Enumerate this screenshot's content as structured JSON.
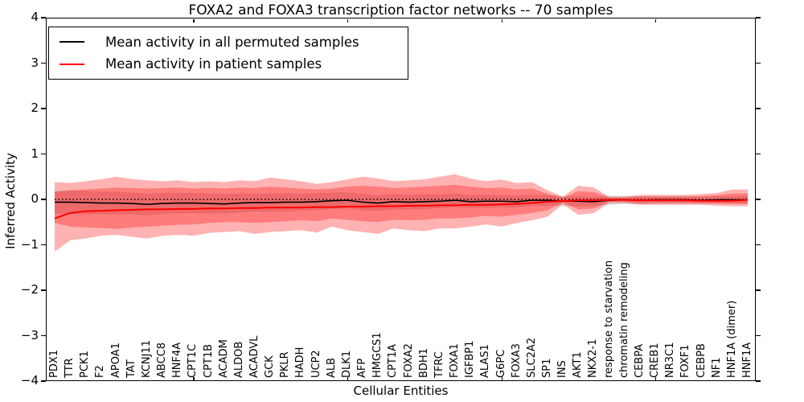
{
  "chart_data": {
    "type": "line",
    "title": "FOXA2 and FOXA3 transcription factor networks -- 70 samples",
    "xlabel": "Cellular Entities",
    "ylabel": "Inferred Activity",
    "ylim": [
      -4,
      4
    ],
    "yticks": [
      4,
      3,
      2,
      1,
      0,
      -1,
      -2,
      -3,
      -4
    ],
    "grid": false,
    "legend_position": "upper left",
    "zero_line": 0,
    "categories": [
      "PDX1",
      "TTR",
      "PCK1",
      "F2",
      "APOA1",
      "TAT",
      "KCNJ11",
      "ABCC8",
      "HNF4A",
      "CPT1C",
      "CPT1B",
      "ACADM",
      "ALDOB",
      "ACADVL",
      "GCK",
      "PKLR",
      "HADH",
      "UCP2",
      "ALB",
      "DLK1",
      "AFP",
      "HMGCS1",
      "CPT1A",
      "FOXA2",
      "BDH1",
      "TFRC",
      "FOXA1",
      "IGFBP1",
      "ALAS1",
      "G6PC",
      "FOXA3",
      "SLC2A2",
      "SP1",
      "INS",
      "AKT1",
      "NKX2-1",
      "response to starvation",
      "chromatin remodeling",
      "CEBPA",
      "CREB1",
      "NR3C1",
      "FOXF1",
      "CEBPB",
      "NF1",
      "HNF1A (dimer)",
      "HNF1A"
    ],
    "series": [
      {
        "name": "Mean activity in all permuted samples",
        "color": "#000000",
        "values": [
          -0.06,
          -0.06,
          -0.07,
          -0.08,
          -0.08,
          -0.09,
          -0.11,
          -0.09,
          -0.08,
          -0.08,
          -0.09,
          -0.1,
          -0.08,
          -0.07,
          -0.07,
          -0.06,
          -0.06,
          -0.05,
          -0.03,
          -0.02,
          -0.06,
          -0.08,
          -0.05,
          -0.06,
          -0.05,
          -0.04,
          -0.02,
          -0.05,
          -0.04,
          -0.04,
          -0.05,
          -0.02,
          -0.02,
          -0.04,
          -0.04,
          -0.05,
          -0.02,
          -0.01,
          -0.02,
          -0.01,
          -0.01,
          -0.01,
          -0.02,
          -0.01,
          -0.01,
          -0.01
        ],
        "band_halfwidth": [
          0.25,
          0.26,
          0.26,
          0.25,
          0.25,
          0.24,
          0.24,
          0.23,
          0.23,
          0.22,
          0.22,
          0.21,
          0.21,
          0.2,
          0.2,
          0.2,
          0.19,
          0.19,
          0.18,
          0.18,
          0.18,
          0.17,
          0.17,
          0.16,
          0.16,
          0.15,
          0.15,
          0.14,
          0.14,
          0.13,
          0.13,
          0.12,
          0.12,
          0.11,
          0.11,
          0.1,
          0.1,
          0.09,
          0.09,
          0.08,
          0.08,
          0.08,
          0.08,
          0.08,
          0.08,
          0.08
        ],
        "band_color": "#999999",
        "band_opacity": 0.35
      },
      {
        "name": "Mean activity in patient samples",
        "color": "#ff0000",
        "values": [
          -0.42,
          -0.3,
          -0.26,
          -0.25,
          -0.24,
          -0.23,
          -0.22,
          -0.22,
          -0.21,
          -0.21,
          -0.2,
          -0.2,
          -0.19,
          -0.19,
          -0.18,
          -0.18,
          -0.18,
          -0.17,
          -0.17,
          -0.16,
          -0.16,
          -0.15,
          -0.15,
          -0.14,
          -0.14,
          -0.13,
          -0.13,
          -0.12,
          -0.12,
          -0.11,
          -0.1,
          -0.08,
          -0.05,
          -0.04,
          -0.02,
          -0.02,
          -0.01,
          -0.01,
          -0.02,
          -0.02,
          -0.02,
          -0.02,
          -0.03,
          -0.03,
          -0.03,
          -0.01
        ],
        "band_outer_top": [
          0.38,
          0.36,
          0.4,
          0.44,
          0.5,
          0.45,
          0.42,
          0.4,
          0.42,
          0.38,
          0.4,
          0.38,
          0.42,
          0.4,
          0.48,
          0.44,
          0.4,
          0.34,
          0.38,
          0.44,
          0.5,
          0.46,
          0.4,
          0.42,
          0.44,
          0.5,
          0.55,
          0.46,
          0.4,
          0.44,
          0.36,
          0.38,
          0.2,
          0.06,
          0.3,
          0.26,
          0.06,
          0.06,
          0.1,
          0.1,
          0.1,
          0.1,
          0.12,
          0.14,
          0.22,
          0.22
        ],
        "band_outer_bottom": [
          -1.15,
          -0.9,
          -0.86,
          -0.8,
          -0.78,
          -0.82,
          -0.86,
          -0.8,
          -0.78,
          -0.8,
          -0.74,
          -0.72,
          -0.7,
          -0.76,
          -0.72,
          -0.7,
          -0.68,
          -0.73,
          -0.6,
          -0.68,
          -0.72,
          -0.76,
          -0.64,
          -0.68,
          -0.7,
          -0.64,
          -0.64,
          -0.6,
          -0.55,
          -0.6,
          -0.52,
          -0.46,
          -0.38,
          -0.1,
          -0.34,
          -0.3,
          -0.08,
          -0.08,
          -0.12,
          -0.12,
          -0.12,
          -0.12,
          -0.12,
          -0.14,
          -0.15,
          -0.15
        ],
        "band_inner_top": [
          0.16,
          0.2,
          0.22,
          0.24,
          0.26,
          0.25,
          0.24,
          0.25,
          0.26,
          0.24,
          0.25,
          0.24,
          0.26,
          0.25,
          0.28,
          0.26,
          0.24,
          0.22,
          0.24,
          0.28,
          0.3,
          0.28,
          0.25,
          0.26,
          0.28,
          0.3,
          0.32,
          0.28,
          0.25,
          0.26,
          0.22,
          0.24,
          0.12,
          0.04,
          0.18,
          0.16,
          0.04,
          0.04,
          0.06,
          0.06,
          0.06,
          0.06,
          0.07,
          0.09,
          0.13,
          0.13
        ],
        "band_inner_bottom": [
          -0.52,
          -0.6,
          -0.62,
          -0.63,
          -0.65,
          -0.62,
          -0.6,
          -0.58,
          -0.56,
          -0.55,
          -0.52,
          -0.5,
          -0.5,
          -0.52,
          -0.5,
          -0.48,
          -0.46,
          -0.48,
          -0.42,
          -0.45,
          -0.48,
          -0.5,
          -0.45,
          -0.46,
          -0.45,
          -0.42,
          -0.42,
          -0.4,
          -0.36,
          -0.38,
          -0.34,
          -0.3,
          -0.24,
          -0.06,
          -0.22,
          -0.2,
          -0.05,
          -0.05,
          -0.08,
          -0.08,
          -0.08,
          -0.08,
          -0.08,
          -0.09,
          -0.1,
          -0.1
        ],
        "band_color": "#ff0000",
        "band_opacity": 0.3
      }
    ]
  },
  "legend": {
    "items": [
      {
        "label": "Mean activity in all permuted samples",
        "color": "#000000"
      },
      {
        "label": "Mean activity in patient samples",
        "color": "#ff0000"
      }
    ]
  },
  "colors": {
    "frame": "#000000",
    "background": "#ffffff",
    "zero_line": "#000000"
  }
}
